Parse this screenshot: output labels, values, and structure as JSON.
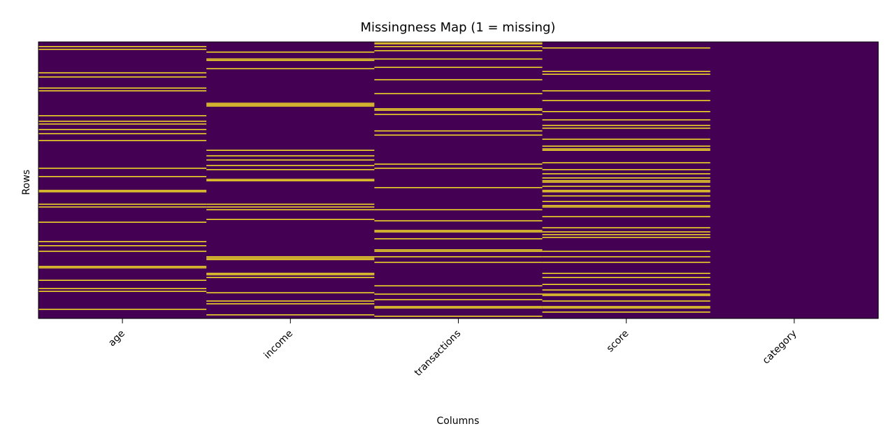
{
  "chart_data": {
    "type": "heatmap",
    "title": "Missingness Map (1 = missing)",
    "xlabel": "Columns",
    "ylabel": "Rows",
    "columns": [
      "age",
      "income",
      "transactions",
      "score",
      "category"
    ],
    "n_rows": 200,
    "value_colors": {
      "0": "#440154",
      "1": "#fde725"
    },
    "missing_rows": {
      "age": [
        3,
        5,
        22,
        25,
        33,
        35,
        53,
        57,
        59,
        63,
        66,
        71,
        91,
        97,
        107,
        108,
        117,
        119,
        130,
        144,
        147,
        151,
        162,
        163,
        172,
        178,
        180,
        193
      ],
      "income": [
        7,
        12,
        13,
        19,
        44,
        45,
        46,
        78,
        82,
        85,
        89,
        92,
        99,
        100,
        117,
        119,
        121,
        128,
        155,
        156,
        157,
        167,
        168,
        170,
        181,
        187,
        189,
        197
      ],
      "transactions": [
        0,
        1,
        3,
        6,
        12,
        18,
        27,
        37,
        48,
        49,
        52,
        64,
        67,
        88,
        91,
        105,
        121,
        129,
        136,
        137,
        142,
        150,
        151,
        155,
        159,
        176,
        182,
        186,
        191,
        192,
        198
      ],
      "score": [
        4,
        21,
        23,
        35,
        42,
        50,
        56,
        60,
        62,
        70,
        75,
        77,
        78,
        87,
        92,
        95,
        98,
        100,
        101,
        104,
        107,
        108,
        111,
        115,
        118,
        119,
        126,
        134,
        137,
        139,
        141,
        151,
        155,
        159,
        167,
        170,
        175,
        179,
        182,
        183,
        187,
        191,
        192,
        195
      ]
    }
  }
}
